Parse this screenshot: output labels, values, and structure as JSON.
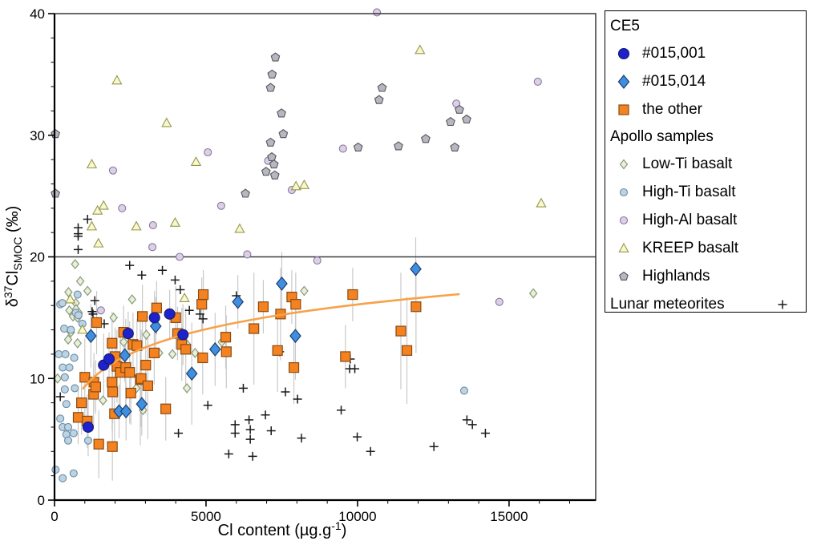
{
  "chart_data": {
    "type": "scatter",
    "xlabel": "Cl content (µg.g-1)",
    "xlabel_parts": [
      {
        "t": "Cl content (µg.g"
      },
      {
        "t": "-1",
        "sup": true
      },
      {
        "t": ")"
      }
    ],
    "ylabel": "delta37Cl SMOC (permil)",
    "ylabel_parts": [
      {
        "t": "δ"
      },
      {
        "t": "37",
        "sup": true
      },
      {
        "t": "Cl"
      },
      {
        "t": "SMOC",
        "sub": true
      },
      {
        "t": " (‰)"
      }
    ],
    "xlim": [
      0,
      17860
    ],
    "ylim": [
      0,
      40
    ],
    "x_ticks": [
      0,
      5000,
      10000,
      15000
    ],
    "x_minor_step": 1000,
    "y_ticks": [
      0,
      10,
      20,
      30,
      40
    ],
    "y_minor_step": 2,
    "grid": false,
    "legend_position": "outside-top-right",
    "reference_line_y": 20,
    "reference_line_color": "#3c3c3c",
    "error_bar_color": "#c9c9c9",
    "trend": {
      "x_min": 930,
      "x_max": 13370,
      "a": -10.9,
      "b": 2.93,
      "color": "#f7a24b",
      "width": 2.6
    },
    "series": [
      {
        "id": "ce5-015-001",
        "name": "#015,001",
        "group": "CE5",
        "marker": "circle",
        "fill": "#1e22cc",
        "stroke": "#141a66",
        "size": 6.5,
        "has_error_bars": true,
        "points": [
          [
            1110,
            6.0,
            2.4
          ],
          [
            1620,
            11.1,
            2.6
          ],
          [
            1800,
            11.6,
            2.2
          ],
          [
            2430,
            13.7,
            1.8
          ],
          [
            3300,
            15.0,
            2.2
          ],
          [
            3800,
            15.3,
            2.0
          ],
          [
            4240,
            13.6,
            2.5
          ]
        ]
      },
      {
        "id": "ce5-015-014",
        "name": "#015,014",
        "group": "CE5",
        "marker": "diamond",
        "fill": "#3f8ee0",
        "stroke": "#1c3f6e",
        "size": 8,
        "has_error_bars": true,
        "points": [
          [
            1200,
            13.5,
            2.6
          ],
          [
            2130,
            7.3,
            2.2
          ],
          [
            2360,
            7.3,
            2.4
          ],
          [
            2880,
            7.9,
            2.6
          ],
          [
            2320,
            11.9,
            2.2
          ],
          [
            3340,
            14.3,
            2.4
          ],
          [
            4530,
            10.4,
            4.2
          ],
          [
            5300,
            12.4,
            3.0
          ],
          [
            6050,
            16.3,
            2.2
          ],
          [
            7500,
            17.8,
            2.6
          ],
          [
            7950,
            13.5,
            3.6
          ],
          [
            11920,
            19.0,
            2.6
          ]
        ]
      },
      {
        "id": "ce5-other",
        "name": "the other",
        "group": "CE5",
        "marker": "square",
        "fill": "#f58220",
        "stroke": "#8a4a12",
        "size": 6,
        "has_error_bars": true,
        "points": [
          [
            780,
            6.8,
            2.2
          ],
          [
            890,
            8.0,
            2.6
          ],
          [
            1000,
            10.1,
            3.2
          ],
          [
            1080,
            6.5,
            2.2
          ],
          [
            1290,
            8.7,
            2.6
          ],
          [
            1300,
            9.7,
            2.4
          ],
          [
            1360,
            9.3,
            2.2
          ],
          [
            1390,
            14.6,
            2.6
          ],
          [
            1460,
            4.6,
            2.8
          ],
          [
            1900,
            12.9,
            2.6
          ],
          [
            1900,
            9.7,
            4.0
          ],
          [
            1910,
            4.4,
            2.8
          ],
          [
            1920,
            8.9,
            2.6
          ],
          [
            1980,
            7.1,
            3.0
          ],
          [
            2000,
            11.8,
            2.4
          ],
          [
            2060,
            11.0,
            3.0
          ],
          [
            2170,
            10.5,
            3.4
          ],
          [
            2280,
            13.8,
            2.2
          ],
          [
            2350,
            10.9,
            4.0
          ],
          [
            2480,
            10.5,
            4.2
          ],
          [
            2520,
            8.8,
            2.6
          ],
          [
            2590,
            12.8,
            2.6
          ],
          [
            2720,
            12.7,
            2.2
          ],
          [
            2830,
            9.9,
            5.4
          ],
          [
            2860,
            10.0,
            4.0
          ],
          [
            2900,
            15.1,
            2.6
          ],
          [
            3010,
            11.1,
            4.0
          ],
          [
            3080,
            9.4,
            4.4
          ],
          [
            3290,
            12.1,
            2.6
          ],
          [
            3370,
            15.8,
            2.2
          ],
          [
            3670,
            7.5,
            2.6
          ],
          [
            4000,
            15.0,
            2.6
          ],
          [
            4060,
            13.7,
            2.2
          ],
          [
            4200,
            12.8,
            3.0
          ],
          [
            4330,
            12.4,
            3.4
          ],
          [
            4860,
            16.1,
            2.2
          ],
          [
            4890,
            11.7,
            3.0
          ],
          [
            4910,
            16.9,
            2.0
          ],
          [
            5650,
            13.4,
            2.6
          ],
          [
            5670,
            12.2,
            3.0
          ],
          [
            6580,
            14.1,
            4.6
          ],
          [
            6890,
            15.9,
            2.2
          ],
          [
            7360,
            12.3,
            3.4
          ],
          [
            7460,
            15.3,
            3.8
          ],
          [
            7830,
            16.7,
            2.2
          ],
          [
            7900,
            10.9,
            3.0
          ],
          [
            7960,
            16.1,
            2.6
          ],
          [
            9600,
            11.8,
            2.6
          ],
          [
            9840,
            16.9,
            2.2
          ],
          [
            11430,
            13.9,
            4.8
          ],
          [
            11630,
            12.3,
            4.4
          ],
          [
            11930,
            15.9,
            3.8
          ]
        ]
      },
      {
        "id": "low-ti-basalt",
        "name": "Low-Ti basalt",
        "group": "Apollo samples",
        "marker": "diamond",
        "fill": "#e9f0da",
        "stroke": "#88997a",
        "size": 5.5,
        "has_error_bars": false,
        "points": [
          [
            100,
            10.0
          ],
          [
            450,
            13.2
          ],
          [
            460,
            17.1
          ],
          [
            490,
            15.6
          ],
          [
            540,
            13.8
          ],
          [
            610,
            15.1
          ],
          [
            680,
            19.4
          ],
          [
            700,
            16.2
          ],
          [
            710,
            15.7
          ],
          [
            760,
            15.0
          ],
          [
            760,
            12.9
          ],
          [
            800,
            15.4
          ],
          [
            850,
            18.0
          ],
          [
            1090,
            17.2
          ],
          [
            1600,
            8.2
          ],
          [
            1950,
            15.0
          ],
          [
            2280,
            13.0
          ],
          [
            2560,
            16.5
          ],
          [
            2700,
            9.2
          ],
          [
            2920,
            7.4
          ],
          [
            3030,
            13.6
          ],
          [
            3450,
            12.1
          ],
          [
            3890,
            12.0
          ],
          [
            4370,
            12.8
          ],
          [
            4370,
            9.2
          ],
          [
            4640,
            12.1
          ],
          [
            5520,
            13.0
          ],
          [
            8240,
            17.2
          ],
          [
            15800,
            17.0
          ]
        ]
      },
      {
        "id": "high-ti-basalt",
        "name": "High-Ti basalt",
        "group": "Apollo samples",
        "marker": "circle",
        "fill": "#bad4e6",
        "stroke": "#708a9e",
        "size": 4.5,
        "has_error_bars": false,
        "points": [
          [
            35,
            2.5
          ],
          [
            140,
            12.0
          ],
          [
            190,
            16.1
          ],
          [
            190,
            6.7
          ],
          [
            260,
            16.2
          ],
          [
            270,
            10.9
          ],
          [
            270,
            6.0
          ],
          [
            270,
            1.8
          ],
          [
            320,
            14.1
          ],
          [
            340,
            10.1
          ],
          [
            340,
            9.1
          ],
          [
            360,
            12.0
          ],
          [
            390,
            7.9
          ],
          [
            390,
            5.4
          ],
          [
            450,
            6.0
          ],
          [
            450,
            4.9
          ],
          [
            490,
            10.9
          ],
          [
            540,
            14.0
          ],
          [
            630,
            5.5
          ],
          [
            630,
            2.2
          ],
          [
            650,
            11.7
          ],
          [
            670,
            9.2
          ],
          [
            700,
            15.4
          ],
          [
            760,
            16.9
          ],
          [
            790,
            15.2
          ],
          [
            920,
            14.5
          ],
          [
            1110,
            4.9
          ],
          [
            13520,
            9.0
          ]
        ]
      },
      {
        "id": "high-al-basalt",
        "name": "High-Al basalt",
        "group": "Apollo samples",
        "marker": "circle",
        "fill": "#dcd0e8",
        "stroke": "#89799b",
        "size": 4.5,
        "has_error_bars": false,
        "points": [
          [
            1530,
            15.6
          ],
          [
            1930,
            27.1
          ],
          [
            2230,
            24.0
          ],
          [
            3230,
            20.8
          ],
          [
            3250,
            22.6
          ],
          [
            4130,
            20.0
          ],
          [
            5060,
            28.6
          ],
          [
            5500,
            24.2
          ],
          [
            6360,
            20.2
          ],
          [
            7050,
            27.9
          ],
          [
            7830,
            25.5
          ],
          [
            8670,
            19.7
          ],
          [
            9520,
            28.9
          ],
          [
            10640,
            40.1
          ],
          [
            13260,
            32.6
          ],
          [
            14680,
            16.3
          ],
          [
            15950,
            34.4
          ]
        ]
      },
      {
        "id": "kreep-basalt",
        "name": "KREEP basalt",
        "group": "Apollo samples",
        "marker": "triangle",
        "fill": "#f8f8cd",
        "stroke": "#96964f",
        "size": 6,
        "has_error_bars": false,
        "points": [
          [
            520,
            16.5
          ],
          [
            920,
            14.0
          ],
          [
            1230,
            27.6
          ],
          [
            1230,
            22.5
          ],
          [
            1420,
            23.8
          ],
          [
            1450,
            21.1
          ],
          [
            1620,
            24.2
          ],
          [
            2060,
            34.5
          ],
          [
            2700,
            22.5
          ],
          [
            3700,
            31.0
          ],
          [
            3980,
            22.8
          ],
          [
            4290,
            16.6
          ],
          [
            4670,
            27.8
          ],
          [
            6110,
            22.3
          ],
          [
            7970,
            25.8
          ],
          [
            8240,
            25.9
          ],
          [
            12060,
            37.0
          ],
          [
            16060,
            24.4
          ]
        ]
      },
      {
        "id": "highlands",
        "name": "Highlands",
        "group": "Apollo samples",
        "marker": "pentagon",
        "fill": "#b7b7bf",
        "stroke": "#54545e",
        "size": 5.5,
        "has_error_bars": false,
        "points": [
          [
            30,
            30.1
          ],
          [
            30,
            25.2
          ],
          [
            6300,
            25.2
          ],
          [
            6980,
            27.0
          ],
          [
            7130,
            29.4
          ],
          [
            7130,
            33.9
          ],
          [
            7170,
            28.2
          ],
          [
            7180,
            35.0
          ],
          [
            7240,
            27.6
          ],
          [
            7270,
            26.7
          ],
          [
            7290,
            36.4
          ],
          [
            7490,
            31.8
          ],
          [
            7550,
            30.1
          ],
          [
            10020,
            29.0
          ],
          [
            10710,
            32.9
          ],
          [
            10810,
            33.9
          ],
          [
            11350,
            29.1
          ],
          [
            12250,
            29.7
          ],
          [
            13070,
            31.1
          ],
          [
            13210,
            29.0
          ],
          [
            13360,
            32.1
          ],
          [
            13600,
            31.3
          ]
        ]
      },
      {
        "id": "lunar-meteorites",
        "name": "Lunar meteorites",
        "group": "Lunar meteorites",
        "marker": "plus",
        "fill": "none",
        "stroke": "#1a1a1a",
        "size": 5.5,
        "has_error_bars": false,
        "points": [
          [
            190,
            8.5
          ],
          [
            780,
            22.4
          ],
          [
            780,
            21.9
          ],
          [
            780,
            21.7
          ],
          [
            780,
            20.6
          ],
          [
            1090,
            23.1
          ],
          [
            1240,
            15.5
          ],
          [
            1270,
            15.3
          ],
          [
            1330,
            16.4
          ],
          [
            1640,
            14.5
          ],
          [
            2480,
            19.3
          ],
          [
            2880,
            18.5
          ],
          [
            3560,
            18.9
          ],
          [
            3980,
            18.1
          ],
          [
            4090,
            5.5
          ],
          [
            4150,
            17.3
          ],
          [
            4450,
            15.6
          ],
          [
            4800,
            15.3
          ],
          [
            4900,
            14.9
          ],
          [
            5060,
            7.8
          ],
          [
            5750,
            3.8
          ],
          [
            5960,
            6.2
          ],
          [
            5960,
            5.5
          ],
          [
            6000,
            16.8
          ],
          [
            6230,
            9.2
          ],
          [
            6420,
            6.6
          ],
          [
            6460,
            5.8
          ],
          [
            6460,
            5.0
          ],
          [
            6540,
            3.6
          ],
          [
            6960,
            7.0
          ],
          [
            7150,
            5.7
          ],
          [
            7430,
            12.2
          ],
          [
            7620,
            8.9
          ],
          [
            8020,
            8.3
          ],
          [
            8150,
            5.1
          ],
          [
            9460,
            7.4
          ],
          [
            9740,
            10.8
          ],
          [
            9760,
            11.6
          ],
          [
            9910,
            10.8
          ],
          [
            9990,
            5.2
          ],
          [
            10430,
            4.0
          ],
          [
            12520,
            4.4
          ],
          [
            13610,
            6.6
          ],
          [
            13790,
            6.2
          ],
          [
            14220,
            5.5
          ]
        ]
      }
    ],
    "legend": {
      "groups": [
        {
          "title": "CE5",
          "items": [
            {
              "label": "#015,001",
              "series": 0
            },
            {
              "label": "#015,014",
              "series": 1
            },
            {
              "label": "the other",
              "series": 2
            }
          ]
        },
        {
          "title": "Apollo samples",
          "items": [
            {
              "label": "Low-Ti basalt",
              "series": 3
            },
            {
              "label": "High-Ti basalt",
              "series": 4
            },
            {
              "label": "High-Al basalt",
              "series": 5
            },
            {
              "label": "KREEP basalt",
              "series": 6
            },
            {
              "label": "Highlands",
              "series": 7
            }
          ]
        },
        {
          "title": "Lunar meteorites",
          "inline_marker_series": 8,
          "items": []
        }
      ]
    }
  }
}
